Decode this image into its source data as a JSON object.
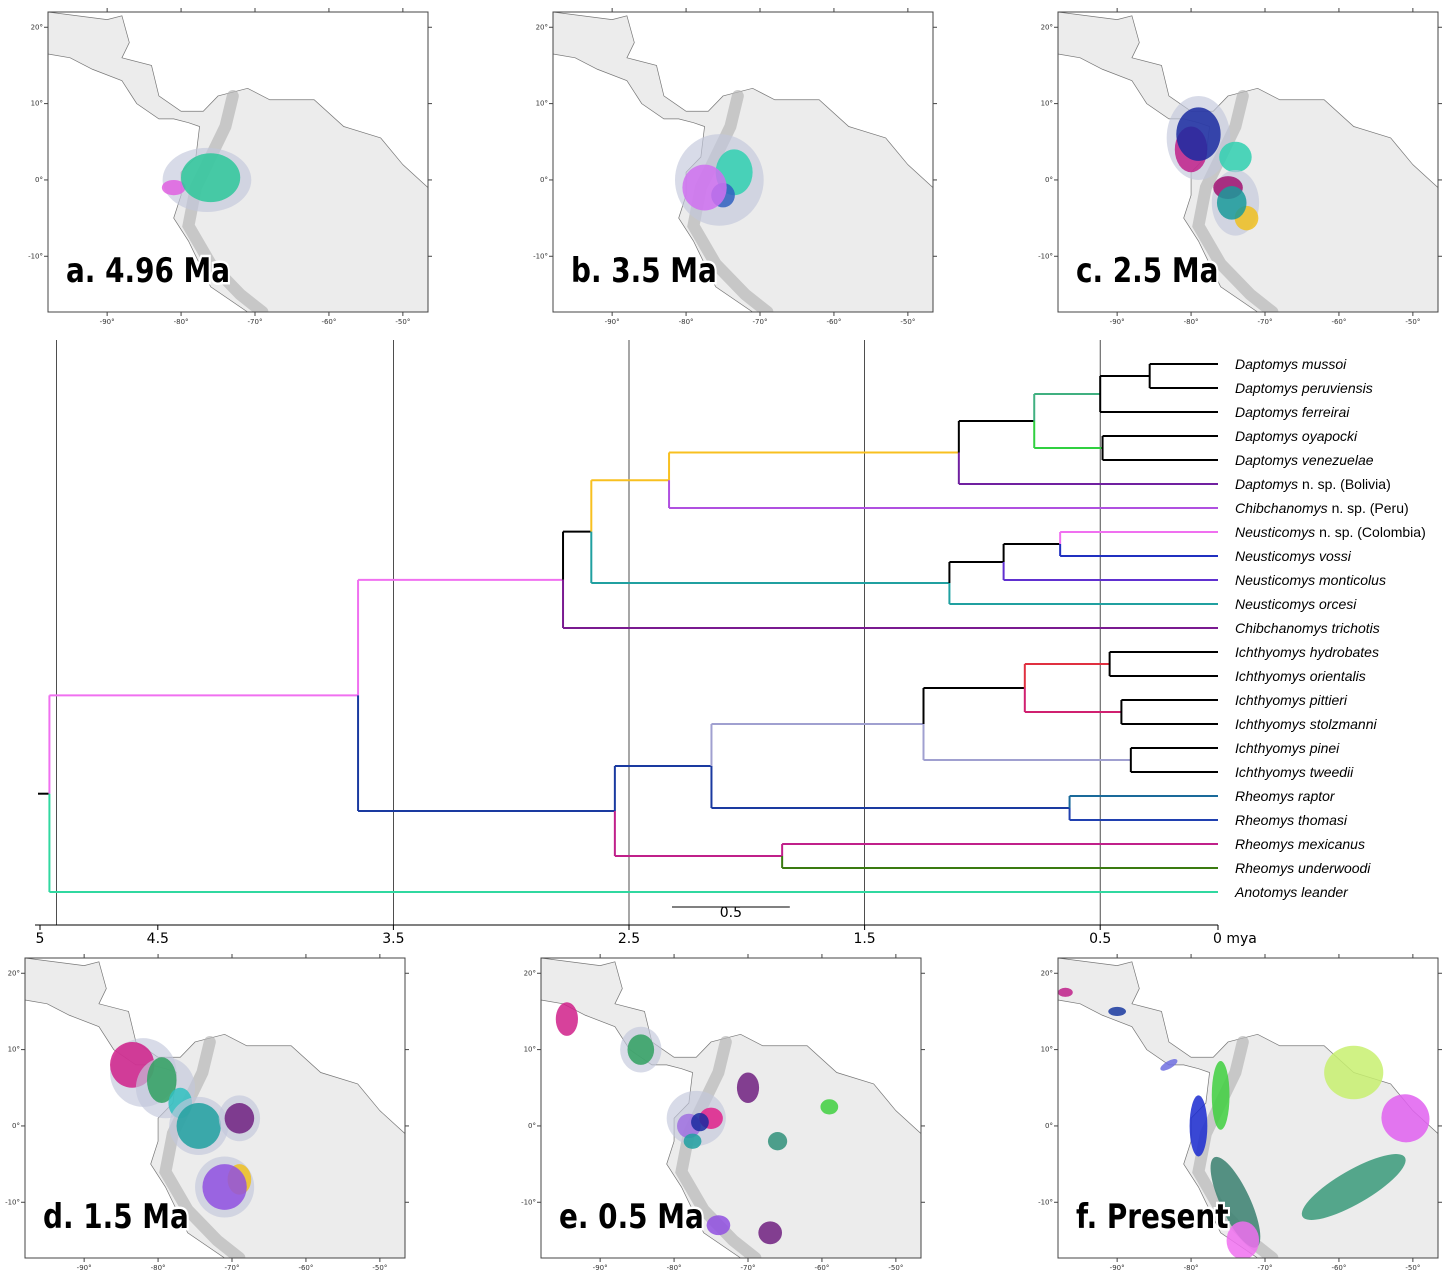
{
  "maps": {
    "xlim": [
      -98,
      -46.6
    ],
    "ylim": [
      -17.3,
      22
    ],
    "xticks": [
      {
        "value": -90,
        "label": "-90°"
      },
      {
        "value": -80,
        "label": "-80°"
      },
      {
        "value": -70,
        "label": "-70°"
      },
      {
        "value": -60,
        "label": "-60°"
      },
      {
        "value": -50,
        "label": "-50°"
      }
    ],
    "yticks": [
      {
        "value": 20,
        "label": "20°"
      },
      {
        "value": 10,
        "label": "10°"
      },
      {
        "value": 0,
        "label": "0°"
      },
      {
        "value": -10,
        "label": "-10°"
      }
    ],
    "panels": [
      {
        "label": "a. 4.96 Ma"
      },
      {
        "label": "b. 3.5 Ma"
      },
      {
        "label": "c. 2.5 Ma"
      },
      {
        "label": "d. 1.5 Ma"
      },
      {
        "label": "e. 0.5 Ma"
      },
      {
        "label": "f. Present"
      }
    ]
  },
  "chart_data": {
    "type": "dendrogram",
    "xlim": [
      5,
      0
    ],
    "xticks": [
      5,
      4.5,
      3.5,
      2.5,
      1.5,
      0.5,
      {
        "value": 0,
        "label": "0 mya"
      }
    ],
    "gridlines": [
      4.93,
      3.5,
      2.5,
      1.5,
      0.5
    ],
    "scale_bar": 0.5,
    "tree": {
      "age": 4.96,
      "stem": 5,
      "color": "#000000",
      "children": [
        {
          "age": 3.65,
          "color": "#f070f0",
          "children": [
            {
              "age": 2.78,
              "color": "#f070f0",
              "children": [
                {
                  "age": 2.66,
                  "color": "#000000",
                  "children": [
                    {
                      "age": 2.33,
                      "color": "#f8c020",
                      "children": [
                        {
                          "age": 1.1,
                          "color": "#f8c020",
                          "children": [
                            {
                              "age": 0.78,
                              "color": "#000000",
                              "children": [
                                {
                                  "age": 0.5,
                                  "color": "#40b080",
                                  "children": [
                                    {
                                      "age": 0.29,
                                      "color": "#000000",
                                      "children": [
                                        {
                                          "italic": "Daptomys mussoi",
                                          "color": "#000000"
                                        },
                                        {
                                          "italic": "Daptomys peruviensis",
                                          "color": "#000000"
                                        }
                                      ]
                                    },
                                    {
                                      "italic": "Daptomys ferreirai",
                                      "color": "#000000"
                                    }
                                  ]
                                },
                                {
                                  "age": 0.49,
                                  "color": "#30d040",
                                  "children": [
                                    {
                                      "italic": "Daptomys oyapocki",
                                      "color": "#000000"
                                    },
                                    {
                                      "italic": "Daptomys venezuelae",
                                      "color": "#000000"
                                    }
                                  ]
                                }
                              ]
                            },
                            {
                              "italic": "Daptomys",
                              "roman": "n. sp. (Bolivia)",
                              "color": "#7020a0"
                            }
                          ]
                        },
                        {
                          "italic": "Chibchanomys",
                          "roman": "n. sp. (Peru)",
                          "color": "#b050e0"
                        }
                      ]
                    },
                    {
                      "age": 1.14,
                      "color": "#20a0a0",
                      "children": [
                        {
                          "age": 0.91,
                          "color": "#000000",
                          "children": [
                            {
                              "age": 0.67,
                              "color": "#000000",
                              "children": [
                                {
                                  "italic": "Neusticomys",
                                  "roman": "n. sp. (Colombia)",
                                  "color": "#f070f0"
                                },
                                {
                                  "italic": "Neusticomys vossi",
                                  "color": "#2030c0"
                                }
                              ]
                            },
                            {
                              "italic": "Neusticomys monticolus",
                              "color": "#6030d0"
                            }
                          ]
                        },
                        {
                          "italic": "Neusticomys orcesi",
                          "color": "#20a0a0"
                        }
                      ]
                    }
                  ]
                },
                {
                  "italic": "Chibchanomys trichotis",
                  "color": "#7a1a90"
                }
              ]
            },
            {
              "age": 2.56,
              "color": "#1a3aa0",
              "children": [
                {
                  "age": 2.15,
                  "color": "#1a3aa0",
                  "children": [
                    {
                      "age": 1.25,
                      "color": "#a0a0d0",
                      "children": [
                        {
                          "age": 0.82,
                          "color": "#000000",
                          "children": [
                            {
                              "age": 0.46,
                              "color": "#e03040",
                              "children": [
                                {
                                  "italic": "Ichthyomys hydrobates",
                                  "color": "#000000"
                                },
                                {
                                  "italic": "Ichthyomys orientalis",
                                  "color": "#000000"
                                }
                              ]
                            },
                            {
                              "age": 0.41,
                              "color": "#d02070",
                              "children": [
                                {
                                  "italic": "Ichthyomys pittieri",
                                  "color": "#000000"
                                },
                                {
                                  "italic": "Ichthyomys stolzmanni",
                                  "color": "#000000"
                                }
                              ]
                            }
                          ]
                        },
                        {
                          "age": 0.37,
                          "color": "#a0a0d0",
                          "children": [
                            {
                              "italic": "Ichthyomys pinei",
                              "color": "#000000"
                            },
                            {
                              "italic": "Ichthyomys tweedii",
                              "color": "#000000"
                            }
                          ]
                        }
                      ]
                    },
                    {
                      "age": 0.63,
                      "color": "#1a3aa0",
                      "children": [
                        {
                          "italic": "Rheomys raptor",
                          "color": "#1a6a9a"
                        },
                        {
                          "italic": "Rheomys thomasi",
                          "color": "#2040b0"
                        }
                      ]
                    }
                  ]
                },
                {
                  "age": 1.85,
                  "color": "#c0208a",
                  "children": [
                    {
                      "italic": "Rheomys mexicanus",
                      "color": "#c0208a"
                    },
                    {
                      "italic": "Rheomys underwoodi",
                      "color": "#3a7a10"
                    }
                  ]
                }
              ]
            }
          ]
        },
        {
          "italic": "Anotomys leander",
          "color": "#30d8a0"
        }
      ]
    }
  }
}
